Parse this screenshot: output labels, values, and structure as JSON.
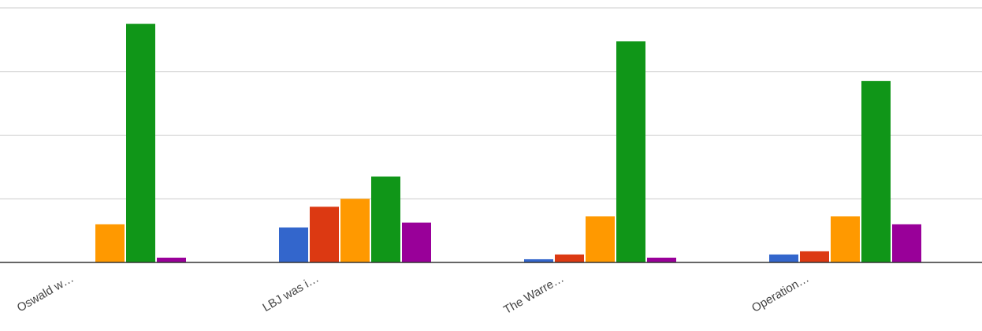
{
  "chart_data": {
    "type": "bar",
    "categories": [
      "Oswald w…",
      "LBJ was i…",
      "The Warre…",
      "Operation…"
    ],
    "series": [
      {
        "color": "#3366cc",
        "values": [
          0,
          11,
          1,
          2.5
        ]
      },
      {
        "color": "#dc3912",
        "values": [
          0,
          17.5,
          2.5,
          3.5
        ]
      },
      {
        "color": "#ff9900",
        "values": [
          12,
          20,
          14.5,
          14.5
        ]
      },
      {
        "color": "#109618",
        "values": [
          75,
          27,
          69.5,
          57
        ]
      },
      {
        "color": "#990099",
        "values": [
          1.5,
          12.5,
          1.5,
          12
        ]
      }
    ],
    "ylim": [
      0,
      80
    ],
    "yticks": [
      0,
      20,
      40,
      60,
      80
    ],
    "grid": true,
    "legend": "none"
  }
}
